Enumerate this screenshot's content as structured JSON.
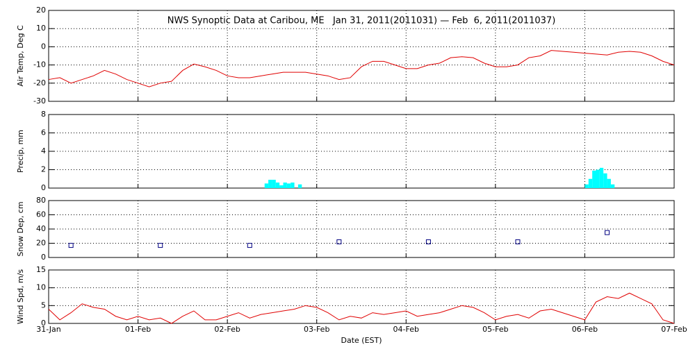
{
  "chart_data": [
    {
      "type": "line",
      "title": "NWS Synoptic Data at Caribou, ME   Jan 31, 2011(2011031) — Feb  6, 2011(2011037)",
      "ylabel": "Air Temp, Deg C",
      "color": "#e00000",
      "x": [
        0,
        3,
        6,
        9,
        12,
        15,
        18,
        21,
        24,
        27,
        30,
        33,
        36,
        39,
        42,
        45,
        48,
        51,
        54,
        57,
        60,
        63,
        66,
        69,
        72,
        75,
        78,
        81,
        84,
        87,
        90,
        93,
        96,
        99,
        102,
        105,
        108,
        111,
        114,
        117,
        120,
        123,
        126,
        129,
        132,
        135,
        138,
        141,
        144,
        147,
        150,
        153,
        156,
        159,
        162,
        165,
        168
      ],
      "values": [
        -18,
        -17,
        -20,
        -18,
        -16,
        -13,
        -15,
        -18,
        -20,
        -22,
        -20,
        -19,
        -13,
        -9.5,
        -11,
        -13,
        -16,
        -17,
        -17,
        -16,
        -15,
        -14,
        -14,
        -14,
        -15,
        -16,
        -18,
        -17,
        -11,
        -8,
        -8,
        -10,
        -12,
        -12,
        -10,
        -9,
        -6,
        -5.5,
        -6,
        -9,
        -11,
        -11,
        -10,
        -6,
        -5,
        -2,
        -2.5,
        -3,
        -3.5,
        -4,
        -4.5,
        -3,
        -2.5,
        -3,
        -5,
        -8,
        -10
      ],
      "xlim": [
        0,
        168
      ],
      "ylim": [
        -30,
        20
      ],
      "yticks": [
        -30,
        -20,
        -10,
        0,
        10,
        20
      ],
      "grid": true
    },
    {
      "type": "bar",
      "ylabel": "Precip, mm",
      "color": "#00ffff",
      "x": [
        58,
        59,
        60,
        61,
        62,
        63,
        64,
        65,
        67,
        144,
        145,
        146,
        147,
        148,
        149,
        150,
        151
      ],
      "values": [
        0.5,
        0.9,
        0.9,
        0.6,
        0.3,
        0.6,
        0.5,
        0.6,
        0.4,
        0.4,
        1.0,
        1.9,
        2.0,
        2.2,
        1.6,
        1.0,
        0.4
      ],
      "xlim": [
        0,
        168
      ],
      "ylim": [
        0,
        8
      ],
      "yticks": [
        0,
        2,
        4,
        6,
        8
      ],
      "grid": true
    },
    {
      "type": "scatter",
      "ylabel": "Snow Dep, cm",
      "color": "#000080",
      "x": [
        6,
        30,
        54,
        78,
        102,
        126,
        150
      ],
      "values": [
        17,
        17,
        17,
        22,
        22,
        22,
        35
      ],
      "xlim": [
        0,
        168
      ],
      "ylim": [
        0,
        80
      ],
      "yticks": [
        0,
        20,
        40,
        60,
        80
      ],
      "grid": true
    },
    {
      "type": "line",
      "ylabel": "Wind Spd, m/s",
      "xlabel": "Date (EST)",
      "color": "#e00000",
      "x": [
        0,
        3,
        6,
        9,
        12,
        15,
        18,
        21,
        24,
        27,
        30,
        33,
        36,
        39,
        42,
        45,
        48,
        51,
        54,
        57,
        60,
        63,
        66,
        69,
        72,
        75,
        78,
        81,
        84,
        87,
        90,
        93,
        96,
        99,
        102,
        105,
        108,
        111,
        114,
        117,
        120,
        123,
        126,
        129,
        132,
        135,
        138,
        141,
        144,
        147,
        150,
        153,
        156,
        159,
        162,
        165,
        168
      ],
      "values": [
        4,
        1,
        3,
        5.5,
        4.5,
        4,
        2,
        1,
        2,
        1,
        1.5,
        0,
        2,
        3.5,
        1,
        1,
        2,
        3,
        1.5,
        2.5,
        3,
        3.5,
        4,
        5,
        4.5,
        3,
        1,
        2,
        1.5,
        3,
        2.5,
        3,
        3.5,
        2,
        2.5,
        3,
        4,
        5,
        4.5,
        3,
        1,
        2,
        2.5,
        1.5,
        3.5,
        4,
        3,
        2,
        1,
        6,
        7.5,
        7,
        8.5,
        7,
        5.5,
        1,
        0
      ],
      "xlim": [
        0,
        168
      ],
      "ylim": [
        0,
        15
      ],
      "yticks": [
        0,
        5,
        10,
        15
      ],
      "grid": true,
      "xticks": [
        {
          "value": 0,
          "label": "31-Jan"
        },
        {
          "value": 24,
          "label": "01-Feb"
        },
        {
          "value": 48,
          "label": "02-Feb"
        },
        {
          "value": 72,
          "label": "03-Feb"
        },
        {
          "value": 96,
          "label": "04-Feb"
        },
        {
          "value": 120,
          "label": "05-Feb"
        },
        {
          "value": 144,
          "label": "06-Feb"
        },
        {
          "value": 168,
          "label": "07-Feb"
        }
      ]
    }
  ]
}
